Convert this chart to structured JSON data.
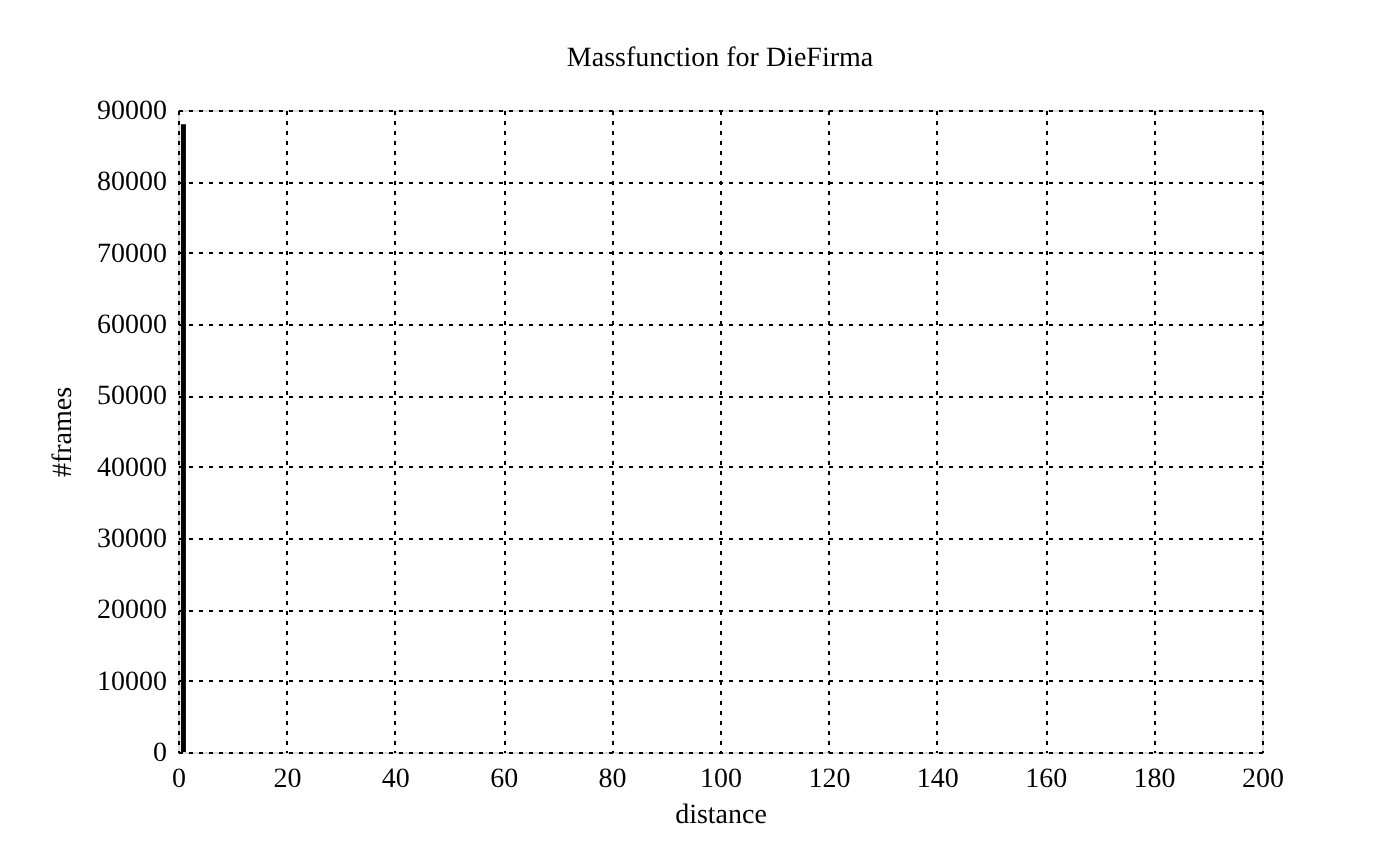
{
  "chart_data": {
    "type": "bar",
    "title": "Massfunction for DieFirma",
    "xlabel": "distance",
    "ylabel": "#frames",
    "x": [
      1
    ],
    "values": [
      88000
    ],
    "color": "#000000",
    "xlim": [
      0,
      200
    ],
    "xticks": [
      0,
      20,
      40,
      60,
      80,
      100,
      120,
      140,
      160,
      180,
      200
    ],
    "ylim": [
      0,
      90000
    ],
    "yticks": [
      0,
      10000,
      20000,
      30000,
      40000,
      50000,
      60000,
      70000,
      80000,
      90000
    ],
    "grid": true
  }
}
